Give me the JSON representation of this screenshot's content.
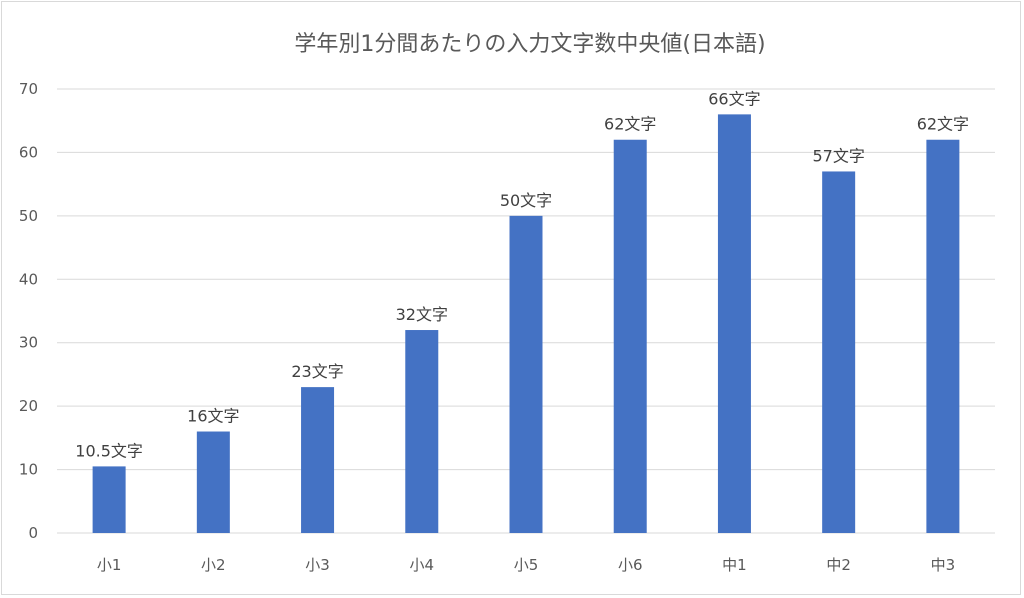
{
  "chart_data": {
    "type": "bar",
    "title": "学年別1分間あたりの入力文字数中央値(日本語)",
    "categories": [
      "小1",
      "小2",
      "小3",
      "小4",
      "小5",
      "小6",
      "中1",
      "中2",
      "中3"
    ],
    "values": [
      10.5,
      16,
      23,
      32,
      50,
      62,
      66,
      57,
      62
    ],
    "data_labels": [
      "10.5文字",
      "16文字",
      "23文字",
      "32文字",
      "50文字",
      "62文字",
      "66文字",
      "57文字",
      "62文字"
    ],
    "ylim": [
      0,
      70
    ],
    "yticks": [
      0,
      10,
      20,
      30,
      40,
      50,
      60,
      70
    ],
    "grid": true,
    "legend": "none",
    "bar_color": "#4472c4"
  }
}
